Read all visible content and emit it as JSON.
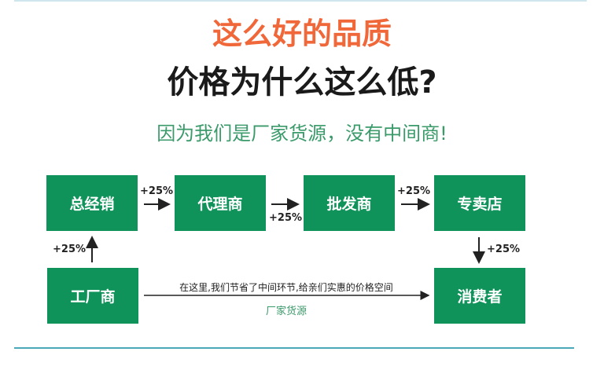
{
  "title_line1": "这么好的品质",
  "title_line2": "价格为什么这么低?",
  "subtitle": "因为我们是厂家货源，没有中间商!",
  "nodes": {
    "general_distributor": "总经销",
    "agent": "代理商",
    "wholesaler": "批发商",
    "store": "专卖店",
    "factory": "工厂商",
    "consumer": "消费者"
  },
  "markups": {
    "factory_to_general": "+25%",
    "general_to_agent": "+25%",
    "agent_to_wholesaler": "+25%",
    "wholesaler_to_store": "+25%",
    "store_to_consumer": "+25%"
  },
  "direct_note": "在这里,我们节省了中间环节,给亲们实惠的价格空间",
  "direct_label": "厂家货源",
  "colors": {
    "box": "#10935a",
    "title_accent": "#f0683a",
    "subtitle": "#3a9a6a"
  }
}
